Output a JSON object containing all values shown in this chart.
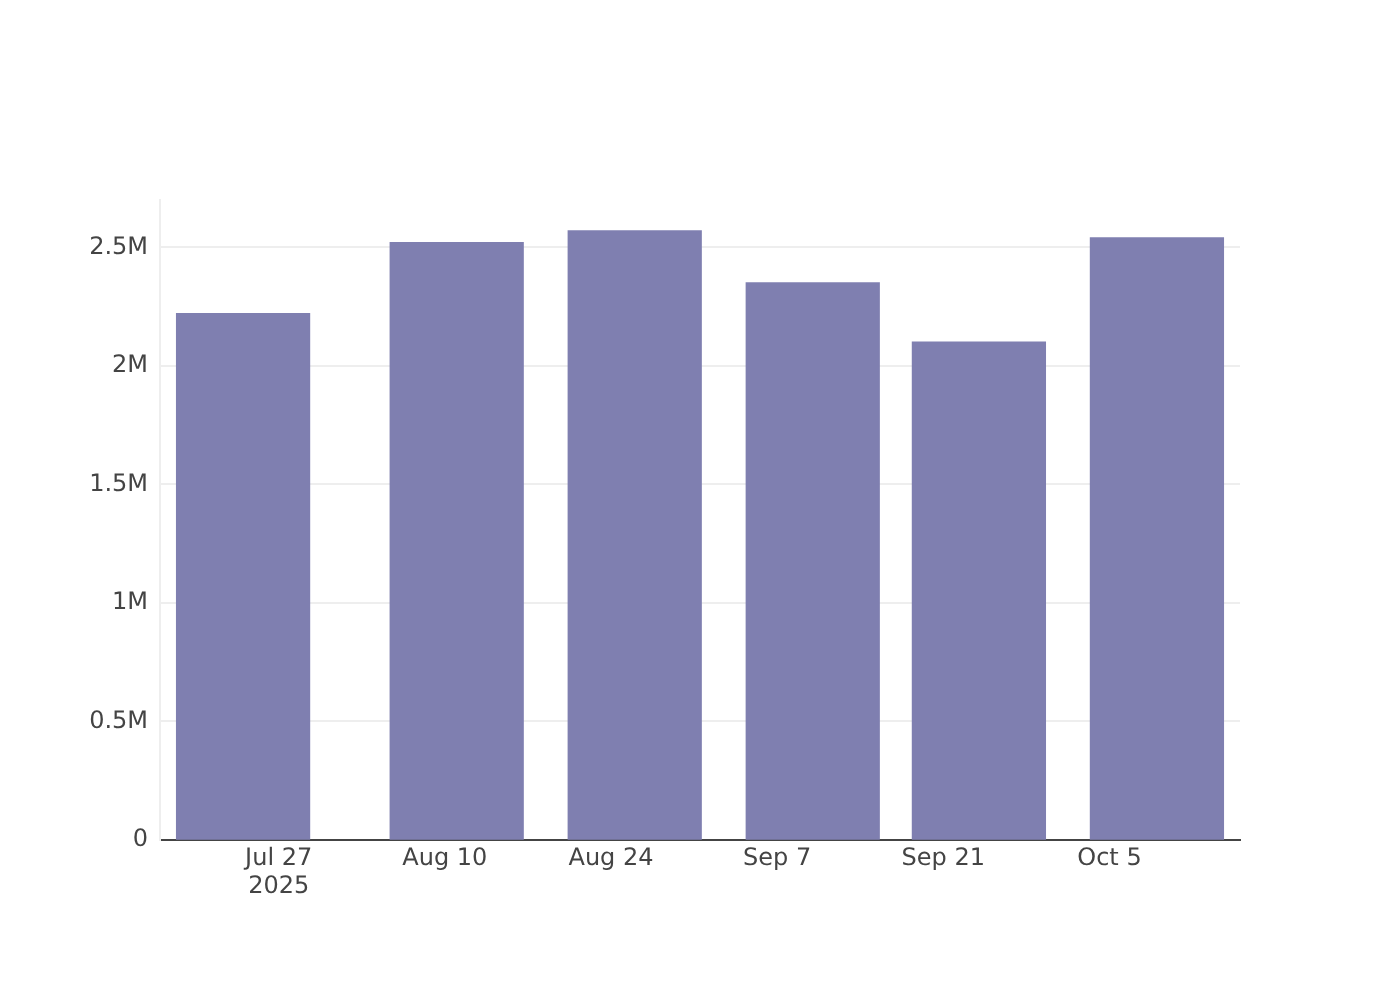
{
  "chart_data": {
    "type": "bar",
    "x": [
      "2025-07-24",
      "2025-08-11",
      "2025-08-26",
      "2025-09-10",
      "2025-09-24",
      "2025-10-09"
    ],
    "values": [
      2220000,
      2520000,
      2570000,
      2350000,
      2100000,
      2540000
    ],
    "color": "#7f7fb0",
    "xlim": [
      "2025-07-17",
      "2025-10-16"
    ],
    "xticks": [
      {
        "value": "2025-07-27",
        "label": "Jul 27\n2025"
      },
      {
        "value": "2025-08-10",
        "label": "Aug 10"
      },
      {
        "value": "2025-08-24",
        "label": "Aug 24"
      },
      {
        "value": "2025-09-07",
        "label": "Sep 7"
      },
      {
        "value": "2025-09-21",
        "label": "Sep 21"
      },
      {
        "value": "2025-10-05",
        "label": "Oct 5"
      }
    ],
    "ylim": [
      0,
      2700000
    ],
    "yticks": [
      {
        "value": 0,
        "label": "0"
      },
      {
        "value": 500000,
        "label": "0.5M"
      },
      {
        "value": 1000000,
        "label": "1M"
      },
      {
        "value": 1500000,
        "label": "1.5M"
      },
      {
        "value": 2000000,
        "label": "2M"
      },
      {
        "value": 2500000,
        "label": "2.5M"
      }
    ],
    "grid": "y"
  }
}
